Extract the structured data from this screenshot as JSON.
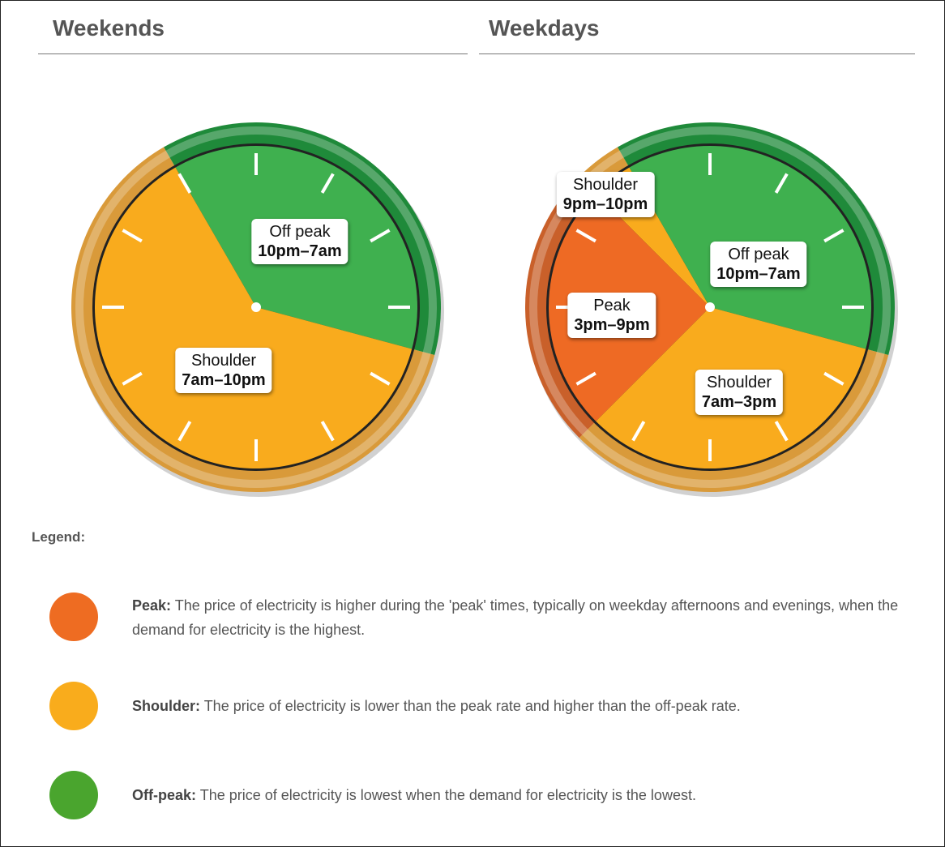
{
  "headings": [
    "Weekends",
    "Weekdays"
  ],
  "clocks": [
    {
      "segments": [
        {
          "label": "Off peak",
          "time": "10pm–7am"
        },
        {
          "label": "Shoulder",
          "time": "7am–10pm"
        }
      ]
    },
    {
      "segments": [
        {
          "label": "Shoulder",
          "time": "9pm–10pm"
        },
        {
          "label": "Off peak",
          "time": "10pm–7am"
        },
        {
          "label": "Peak",
          "time": "3pm–9pm"
        },
        {
          "label": "Shoulder",
          "time": "7am–3pm"
        }
      ]
    }
  ],
  "legend": {
    "title": "Legend:",
    "items": [
      {
        "term": "Peak:",
        "text": "The price of electricity is higher during the 'peak' times, typically on weekday afternoons and evenings, when the demand for electricity is the highest."
      },
      {
        "term": "Shoulder:",
        "text": "The price of electricity is lower than the peak rate and higher than the off-peak rate."
      },
      {
        "term": "Off-peak:",
        "text": "The price of electricity is lowest when the demand for electricity is the lowest."
      }
    ]
  }
}
